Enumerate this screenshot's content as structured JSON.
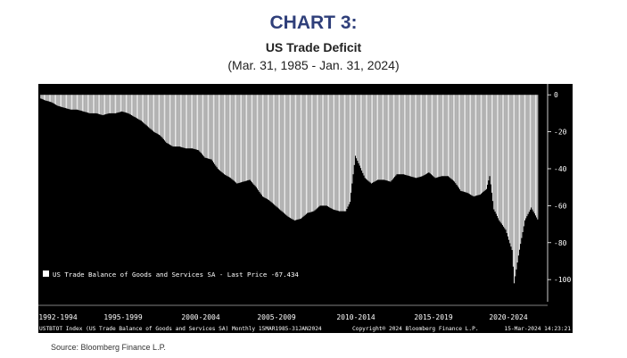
{
  "heading": "CHART 3:",
  "title": "US Trade Deficit",
  "subtitle": "(Mar. 31, 1985 - Jan. 31, 2024)",
  "source": "Source: Bloomberg Finance L.P.",
  "footer": {
    "left": "USTBTOT Index (US Trade Balance of Goods and Services SA)  Monthly 15MAR1985-31JAN2024",
    "middle": "Copyright® 2024 Bloomberg Finance L.P.",
    "right": "15-Mar-2024 14:23:21"
  },
  "colors": {
    "heading": "#2f3f7a",
    "plot_background": "#000000",
    "bars": "#ffffff",
    "axis_text": "#ffffff"
  },
  "chart_data": {
    "type": "bar",
    "legend_text": "US Trade Balance of Goods and Services SA - Last Price  -67.434",
    "legend_position": "bottom-left",
    "last_price": -67.434,
    "x_period_labels": [
      "1992-1994",
      "1995-1999",
      "2000-2004",
      "2005-2009",
      "2010-2014",
      "2015-2019",
      "2020-2024"
    ],
    "y_ticks": [
      0,
      -20,
      -40,
      -60,
      -80,
      -100
    ],
    "ylim": [
      -112,
      3
    ],
    "y_axis_side": "right",
    "x": [
      "1985-03",
      "1985-07",
      "1986-01",
      "1986-07",
      "1987-01",
      "1987-07",
      "1988-01",
      "1988-07",
      "1989-01",
      "1989-07",
      "1990-01",
      "1990-07",
      "1991-01",
      "1991-07",
      "1992-01",
      "1992-07",
      "1993-01",
      "1993-07",
      "1994-01",
      "1994-07",
      "1995-01",
      "1995-07",
      "1996-01",
      "1996-07",
      "1997-01",
      "1997-07",
      "1998-01",
      "1998-07",
      "1999-01",
      "1999-07",
      "2000-01",
      "2000-07",
      "2001-01",
      "2001-07",
      "2002-01",
      "2002-07",
      "2003-01",
      "2003-07",
      "2004-01",
      "2004-07",
      "2005-01",
      "2005-07",
      "2006-01",
      "2006-07",
      "2007-01",
      "2007-07",
      "2008-01",
      "2008-07",
      "2009-01",
      "2009-05",
      "2009-10",
      "2010-01",
      "2010-07",
      "2011-01",
      "2011-07",
      "2012-01",
      "2012-07",
      "2013-01",
      "2013-07",
      "2014-01",
      "2014-07",
      "2015-01",
      "2015-07",
      "2016-01",
      "2016-07",
      "2017-01",
      "2017-07",
      "2018-01",
      "2018-07",
      "2019-01",
      "2019-07",
      "2020-01",
      "2020-04",
      "2020-08",
      "2021-01",
      "2021-07",
      "2022-01",
      "2022-03",
      "2022-07",
      "2023-01",
      "2023-07",
      "2024-01"
    ],
    "values": [
      -2,
      -3,
      -4,
      -6,
      -7,
      -8,
      -8,
      -9,
      -10,
      -10,
      -11,
      -10,
      -10,
      -9,
      -10,
      -12,
      -14,
      -17,
      -20,
      -22,
      -26,
      -28,
      -28,
      -29,
      -29,
      -30,
      -34,
      -35,
      -40,
      -43,
      -45,
      -48,
      -47,
      -46,
      -50,
      -55,
      -57,
      -60,
      -63,
      -66,
      -68,
      -67,
      -64,
      -63,
      -60,
      -60,
      -62,
      -63,
      -63,
      -58,
      -33,
      -37,
      -45,
      -48,
      -46,
      -46,
      -47,
      -43,
      -43,
      -44,
      -45,
      -44,
      -42,
      -45,
      -44,
      -44,
      -47,
      -52,
      -53,
      -55,
      -54,
      -51,
      -44,
      -62,
      -68,
      -73,
      -84,
      -102,
      -87,
      -68,
      -61,
      -67.434
    ],
    "xlabel": "",
    "ylabel": ""
  }
}
